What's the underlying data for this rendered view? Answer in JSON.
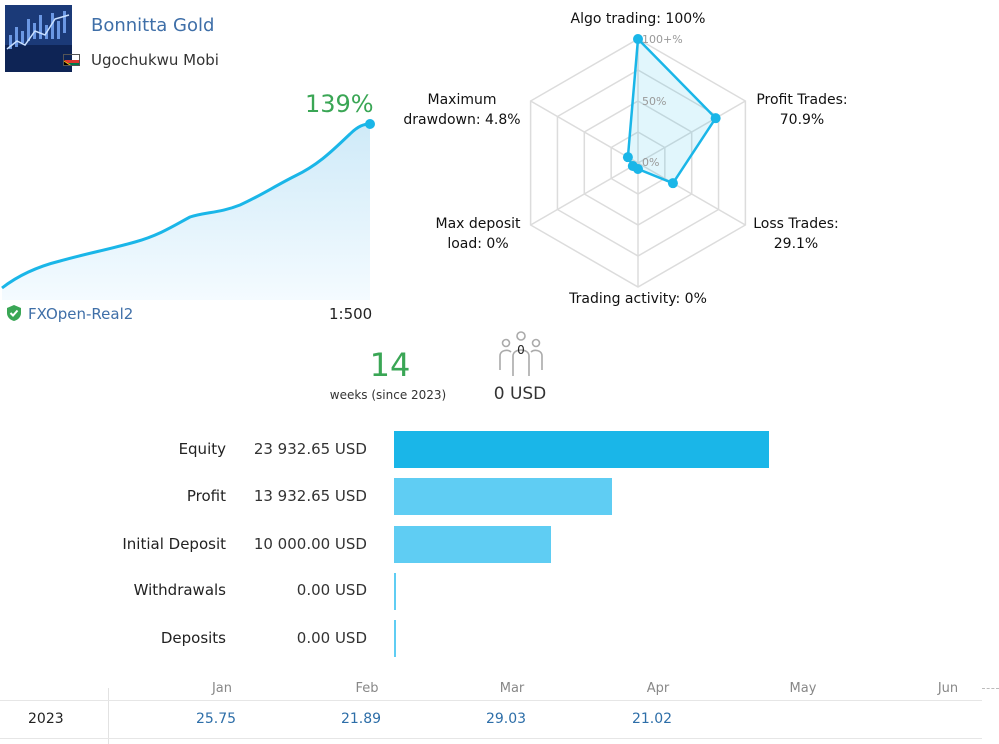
{
  "signal": {
    "name": "Bonnitta Gold",
    "author": "Ugochukwu Mobi",
    "growth": "139%",
    "broker": "FXOpen-Real2",
    "leverage": "1:500"
  },
  "radar": {
    "labels": {
      "algo": "Algo trading: 100%",
      "profit_l1": "Profit Trades:",
      "profit_l2": "70.9%",
      "loss_l1": "Loss Trades:",
      "loss_l2": "29.1%",
      "activity": "Trading activity: 0%",
      "deposit_l1": "Max deposit",
      "deposit_l2": "load: 0%",
      "drawdown_l1": "Maximum",
      "drawdown_l2": "drawdown: 4.8%"
    },
    "ring_labels": [
      "100+%",
      "50%",
      "0%"
    ],
    "values": {
      "algo_trading": 100,
      "profit_trades": 70.9,
      "loss_trades": 29.1,
      "trading_activity": 0,
      "max_deposit_load": 0,
      "max_drawdown": 4.8
    }
  },
  "stats": {
    "weeks": "14",
    "weeks_label": "weeks (since 2023)",
    "subscribers": "0",
    "subscribers_funds": "0 USD"
  },
  "balance": [
    {
      "label": "Equity",
      "value": "23 932.65 USD",
      "amount": 23932.65
    },
    {
      "label": "Profit",
      "value": "13 932.65 USD",
      "amount": 13932.65
    },
    {
      "label": "Initial Deposit",
      "value": "10 000.00 USD",
      "amount": 10000.0
    },
    {
      "label": "Withdrawals",
      "value": "0.00 USD",
      "amount": 0
    },
    {
      "label": "Deposits",
      "value": "0.00 USD",
      "amount": 0
    }
  ],
  "monthly": {
    "months": [
      "Jan",
      "Feb",
      "Mar",
      "Apr",
      "May",
      "Jun"
    ],
    "year": "2023",
    "values": [
      "25.75",
      "21.89",
      "29.03",
      "21.02",
      "",
      ""
    ]
  },
  "colors": {
    "accent_blue": "#1ab6e8",
    "light_blue": "#5fcdf3",
    "growth_green": "#3aa655",
    "link_blue": "#3f6fa8"
  }
}
